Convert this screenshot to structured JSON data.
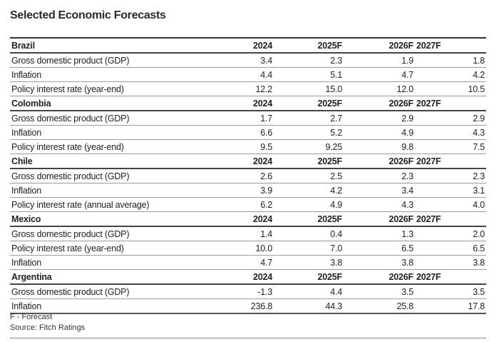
{
  "title": "Selected Economic Forecasts",
  "sections": [
    {
      "country": "Brazil",
      "years": [
        "2024",
        "2025F",
        "2026F",
        "2027F"
      ],
      "rows": [
        {
          "label": "Gross domestic product (GDP)",
          "values": [
            "3.4",
            "2.3",
            "1.9",
            "1.8"
          ]
        },
        {
          "label": "Inflation",
          "values": [
            "4.4",
            "5.1",
            "4.7",
            "4.2"
          ]
        },
        {
          "label": "Policy interest rate (year-end)",
          "values": [
            "12.2",
            "15.0",
            "12.0",
            "10.5"
          ]
        }
      ]
    },
    {
      "country": "Colombia",
      "years": [
        "2024",
        "2025F",
        "2026F",
        "2027F"
      ],
      "rows": [
        {
          "label": "Gross domestic product (GDP)",
          "values": [
            "1.7",
            "2.7",
            "2.9",
            "2.9"
          ]
        },
        {
          "label": "Inflation",
          "values": [
            "6.6",
            "5.2",
            "4.9",
            "4.3"
          ]
        },
        {
          "label": "Policy interest rate (year-end)",
          "values": [
            "9.5",
            "9.25",
            "9.8",
            "7.5"
          ]
        }
      ]
    },
    {
      "country": "Chile",
      "years": [
        "2024",
        "2025F",
        "2026F",
        "2027F"
      ],
      "rows": [
        {
          "label": "Gross domestic product (GDP)",
          "values": [
            "2.6",
            "2.5",
            "2.3",
            "2.3"
          ]
        },
        {
          "label": "Inflation",
          "values": [
            "3.9",
            "4.2",
            "3.4",
            "3.1"
          ]
        },
        {
          "label": "Policy interest rate (annual average)",
          "values": [
            "6.2",
            "4.9",
            "4.3",
            "4.0"
          ]
        }
      ]
    },
    {
      "country": "Mexico",
      "years": [
        "2024",
        "2025F",
        "2026F",
        "2027F"
      ],
      "rows": [
        {
          "label": "Gross domestic product (GDP)",
          "values": [
            "1.4",
            "0.4",
            "1.3",
            "2.0"
          ]
        },
        {
          "label": "Policy interest rate (year-end)",
          "values": [
            "10.0",
            "7.0",
            "6.5",
            "6.5"
          ]
        },
        {
          "label": "Inflation",
          "values": [
            "4.7",
            "3.8",
            "3.8",
            "3.8"
          ]
        }
      ]
    },
    {
      "country": "Argentina",
      "years": [
        "2024",
        "2025F",
        "2026F",
        "2027F"
      ],
      "rows": [
        {
          "label": "Gross domestic product (GDP)",
          "values": [
            "-1.3",
            "4.4",
            "3.5",
            "3.5"
          ]
        },
        {
          "label": "Inflation",
          "values": [
            "236.8",
            "44.3",
            "25.8",
            "17.8"
          ]
        }
      ]
    }
  ],
  "notes": {
    "forecast": "F - Forecast",
    "source": "Source: Fitch Ratings"
  }
}
